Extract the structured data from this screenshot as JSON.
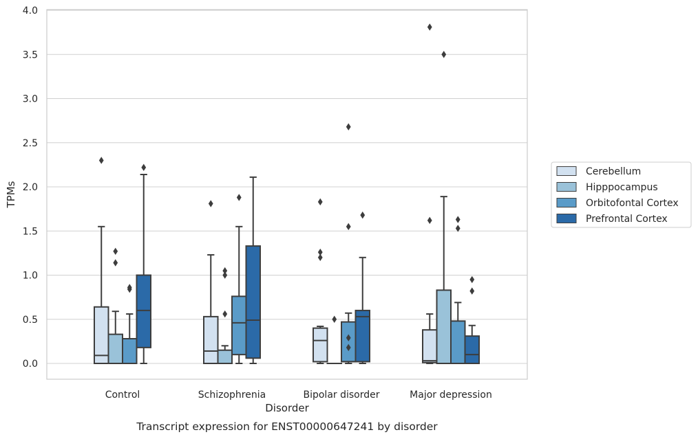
{
  "chart_data": {
    "type": "box",
    "caption": "Transcript expression for ENST00000647241 by disorder",
    "xlabel": "Disorder",
    "ylabel": "TPMs",
    "ylim": [
      -0.18,
      4.02
    ],
    "yticks": [
      0.0,
      0.5,
      1.0,
      1.5,
      2.0,
      2.5,
      3.0,
      3.5,
      4.0
    ],
    "ytick_labels": [
      "0.0",
      "0.5",
      "1.0",
      "1.5",
      "2.0",
      "2.5",
      "3.0",
      "3.5",
      "4.0"
    ],
    "grid": true,
    "legend_position": "right",
    "categories": [
      "Control",
      "Schizophrenia",
      "Bipolar disorder",
      "Major depression"
    ],
    "series": [
      {
        "name": "Cerebellum",
        "color": "#d2e1f0",
        "boxes": [
          {
            "q1": 0.0,
            "median": 0.09,
            "q3": 0.64,
            "whisker_low": 0.0,
            "whisker_high": 1.55,
            "outliers": [
              2.3
            ]
          },
          {
            "q1": 0.0,
            "median": 0.14,
            "q3": 0.53,
            "whisker_low": 0.0,
            "whisker_high": 1.23,
            "outliers": [
              1.81
            ]
          },
          {
            "q1": 0.02,
            "median": 0.26,
            "q3": 0.4,
            "whisker_low": 0.0,
            "whisker_high": 0.42,
            "outliers": [
              1.2,
              1.26,
              1.83
            ]
          },
          {
            "q1": 0.01,
            "median": 0.03,
            "q3": 0.38,
            "whisker_low": 0.0,
            "whisker_high": 0.56,
            "outliers": [
              1.62,
              3.81
            ]
          }
        ]
      },
      {
        "name": "Hipppocampus",
        "color": "#9ac2d9",
        "boxes": [
          {
            "q1": 0.0,
            "median": 0.0,
            "q3": 0.33,
            "whisker_low": 0.0,
            "whisker_high": 0.59,
            "outliers": [
              1.14,
              1.27
            ]
          },
          {
            "q1": 0.0,
            "median": 0.0,
            "q3": 0.15,
            "whisker_low": 0.0,
            "whisker_high": 0.2,
            "outliers": [
              0.56,
              1.0,
              1.05
            ]
          },
          {
            "q1": 0.0,
            "median": 0.0,
            "q3": 0.0,
            "whisker_low": 0.0,
            "whisker_high": 0.0,
            "outliers": [
              0.5
            ]
          },
          {
            "q1": 0.0,
            "median": 0.0,
            "q3": 0.83,
            "whisker_low": 0.0,
            "whisker_high": 1.89,
            "outliers": [
              3.5
            ]
          }
        ]
      },
      {
        "name": "Orbitofontal Cortex",
        "color": "#5a9bc8",
        "boxes": [
          {
            "q1": 0.0,
            "median": 0.0,
            "q3": 0.28,
            "whisker_low": 0.0,
            "whisker_high": 0.56,
            "outliers": [
              0.84,
              0.86
            ]
          },
          {
            "q1": 0.1,
            "median": 0.46,
            "q3": 0.76,
            "whisker_low": 0.0,
            "whisker_high": 1.55,
            "outliers": [
              1.88
            ]
          },
          {
            "q1": 0.02,
            "median": 0.02,
            "q3": 0.47,
            "whisker_low": 0.0,
            "whisker_high": 0.57,
            "outliers": [
              0.18,
              0.29,
              1.55,
              2.68
            ]
          },
          {
            "q1": 0.0,
            "median": 0.0,
            "q3": 0.48,
            "whisker_low": 0.0,
            "whisker_high": 0.69,
            "outliers": [
              1.53,
              1.63
            ]
          }
        ]
      },
      {
        "name": "Prefrontal Cortex",
        "color": "#2b6aa8",
        "boxes": [
          {
            "q1": 0.18,
            "median": 0.6,
            "q3": 1.0,
            "whisker_low": 0.0,
            "whisker_high": 2.14,
            "outliers": [
              2.22
            ]
          },
          {
            "q1": 0.06,
            "median": 0.49,
            "q3": 1.33,
            "whisker_low": 0.0,
            "whisker_high": 2.11,
            "outliers": []
          },
          {
            "q1": 0.02,
            "median": 0.53,
            "q3": 0.6,
            "whisker_low": 0.0,
            "whisker_high": 1.2,
            "outliers": [
              1.68
            ]
          },
          {
            "q1": 0.0,
            "median": 0.1,
            "q3": 0.31,
            "whisker_low": 0.0,
            "whisker_high": 0.43,
            "outliers": [
              0.82,
              0.95
            ]
          }
        ]
      }
    ]
  }
}
